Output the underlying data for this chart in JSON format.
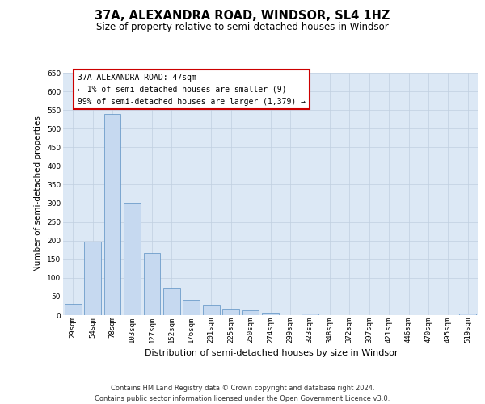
{
  "title": "37A, ALEXANDRA ROAD, WINDSOR, SL4 1HZ",
  "subtitle": "Size of property relative to semi-detached houses in Windsor",
  "xlabel": "Distribution of semi-detached houses by size in Windsor",
  "ylabel": "Number of semi-detached properties",
  "footer_line1": "Contains HM Land Registry data © Crown copyright and database right 2024.",
  "footer_line2": "Contains public sector information licensed under the Open Government Licence v3.0.",
  "annotation_title": "37A ALEXANDRA ROAD: 47sqm",
  "annotation_line1": "← 1% of semi-detached houses are smaller (9)",
  "annotation_line2": "99% of semi-detached houses are larger (1,379) →",
  "bar_labels": [
    "29sqm",
    "54sqm",
    "78sqm",
    "103sqm",
    "127sqm",
    "152sqm",
    "176sqm",
    "201sqm",
    "225sqm",
    "250sqm",
    "274sqm",
    "299sqm",
    "323sqm",
    "348sqm",
    "372sqm",
    "397sqm",
    "421sqm",
    "446sqm",
    "470sqm",
    "495sqm",
    "519sqm"
  ],
  "bar_values": [
    30,
    197,
    540,
    302,
    167,
    72,
    42,
    27,
    15,
    13,
    7,
    0,
    5,
    0,
    0,
    0,
    0,
    0,
    0,
    0,
    5
  ],
  "bar_color": "#c6d9f0",
  "bar_edge_color": "#5a8fc2",
  "ylim": [
    0,
    650
  ],
  "yticks": [
    0,
    50,
    100,
    150,
    200,
    250,
    300,
    350,
    400,
    450,
    500,
    550,
    600,
    650
  ],
  "grid_color": "#c0cfe0",
  "bg_color": "#dce8f5",
  "annotation_box_color": "#ffffff",
  "annotation_box_edge": "#cc0000",
  "title_fontsize": 10.5,
  "subtitle_fontsize": 8.5,
  "ylabel_fontsize": 7.5,
  "xlabel_fontsize": 8,
  "tick_fontsize": 6.5,
  "annotation_fontsize": 7,
  "footer_fontsize": 6
}
